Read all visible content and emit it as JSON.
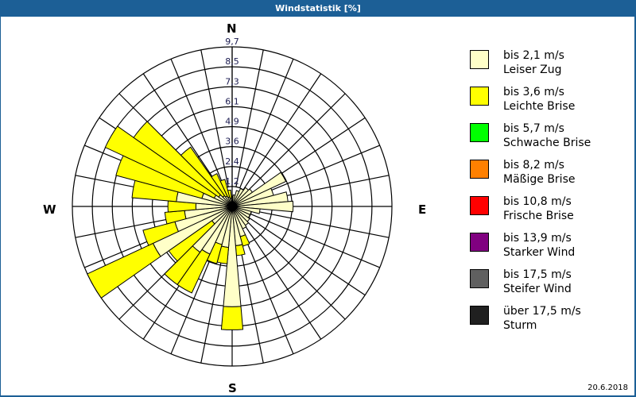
{
  "title": "Windstatistik [%]",
  "date": "20.6.2018",
  "compass": {
    "n": "N",
    "e": "E",
    "s": "S",
    "w": "W"
  },
  "legend": [
    {
      "range": "bis 2,1 m/s",
      "name": "Leiser Zug",
      "color": "#ffffc8"
    },
    {
      "range": "bis 3,6 m/s",
      "name": "Leichte Brise",
      "color": "#ffff00"
    },
    {
      "range": "bis 5,7 m/s",
      "name": "Schwache Brise",
      "color": "#00ff00"
    },
    {
      "range": "bis 8,2 m/s",
      "name": "Mäßige Brise",
      "color": "#ff8000"
    },
    {
      "range": "bis 10,8 m/s",
      "name": "Frische Brise",
      "color": "#ff0000"
    },
    {
      "range": "bis 13,9 m/s",
      "name": "Starker Wind",
      "color": "#800080"
    },
    {
      "range": "bis 17,5 m/s",
      "name": "Steifer Wind",
      "color": "#606060"
    },
    {
      "range": "über 17,5 m/s",
      "name": "Sturm",
      "color": "#202020"
    }
  ],
  "chart_data": {
    "type": "wind-rose",
    "title": "Windstatistik [%]",
    "ring_labels": [
      "1,2",
      "2,4",
      "3,6",
      "4,9",
      "6,1",
      "7,3",
      "8,5",
      "9,7"
    ],
    "rmax": 9.7,
    "sector_width_deg": 10,
    "directions_deg": [
      0,
      10,
      20,
      30,
      40,
      50,
      60,
      70,
      80,
      90,
      100,
      110,
      120,
      130,
      140,
      150,
      160,
      170,
      180,
      190,
      200,
      210,
      220,
      230,
      240,
      250,
      260,
      270,
      280,
      290,
      300,
      310,
      320,
      330,
      340,
      350
    ],
    "series": [
      {
        "name": "bis 2,1 m/s (Leiser Zug)",
        "values": [
          0.6,
          0.7,
          1.0,
          1.2,
          1.4,
          1.5,
          3.6,
          2.6,
          3.4,
          3.7,
          1.7,
          1.2,
          1.2,
          1.3,
          1.4,
          1.5,
          1.9,
          2.4,
          6.1,
          2.5,
          2.4,
          3.2,
          3.4,
          1.5,
          5.3,
          3.6,
          2.9,
          2.2,
          3.4,
          1.9,
          1.2,
          1.0,
          0.8,
          0.7,
          0.6,
          0.5
        ]
      },
      {
        "name": "bis 3,6 m/s (Leichte Brise)",
        "values": [
          0,
          0,
          0,
          0,
          0,
          0,
          0,
          0,
          0,
          0,
          0,
          0,
          0,
          0,
          0,
          0,
          0.6,
          0.6,
          1.4,
          1.0,
          1.2,
          2.6,
          2.4,
          3.2,
          4.4,
          2.0,
          1.2,
          1.7,
          2.7,
          5.4,
          7.3,
          6.3,
          3.6,
          1.5,
          1.1,
          0.5
        ]
      },
      {
        "name": "bis 5,7 m/s (Schwache Brise)",
        "values": [
          0,
          0,
          0,
          0,
          0,
          0,
          0,
          0,
          0,
          0,
          0,
          0,
          0,
          0,
          0,
          0,
          0,
          0,
          0,
          0,
          0,
          0,
          0,
          0,
          0,
          0,
          0,
          0,
          0,
          0,
          0,
          0,
          0,
          0,
          0,
          0
        ]
      }
    ],
    "legend_position": "right"
  }
}
